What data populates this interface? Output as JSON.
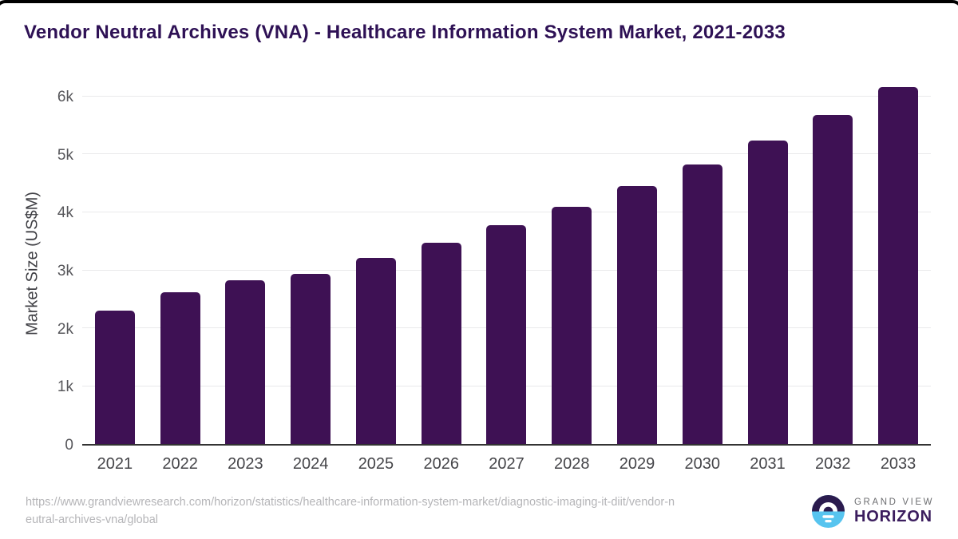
{
  "title": "Vendor Neutral Archives (VNA) - Healthcare Information System Market, 2021-2033",
  "chart_data": {
    "type": "bar",
    "title": "Vendor Neutral Archives (VNA) - Healthcare Information System Market, 2021-2033",
    "categories": [
      "2021",
      "2022",
      "2023",
      "2024",
      "2025",
      "2026",
      "2027",
      "2028",
      "2029",
      "2030",
      "2031",
      "2032",
      "2033"
    ],
    "values": [
      2300,
      2620,
      2820,
      2930,
      3200,
      3470,
      3775,
      4090,
      4445,
      4820,
      5230,
      5670,
      6150
    ],
    "xlabel": "",
    "ylabel": "Market Size (US$M)",
    "ylim": [
      0,
      6000
    ],
    "yticks": [
      {
        "value": 0,
        "label": "0"
      },
      {
        "value": 1000,
        "label": "1k"
      },
      {
        "value": 2000,
        "label": "2k"
      },
      {
        "value": 3000,
        "label": "3k"
      },
      {
        "value": 4000,
        "label": "4k"
      },
      {
        "value": 5000,
        "label": "5k"
      },
      {
        "value": 6000,
        "label": "6k"
      }
    ],
    "grid": true,
    "legend": null,
    "bar_color": "#3e1154"
  },
  "colors": {
    "bar": "#3e1154",
    "title_text": "#2e1155",
    "gridline": "#e9e9eb",
    "axis_line": "#333333",
    "tick_text": "#57575b",
    "url_text": "#b5b5b8",
    "logo_dark": "#2b1b4e",
    "logo_blue": "#57c4ef",
    "logo_horizon_text": "#3b1d5e",
    "logo_grandview_text": "#6d6e71"
  },
  "footer": {
    "source_lines": [
      "https://www.grandviewresearch.com/horizon/statistics/healthcare-information-system-market/diagnostic-imaging-it-diit/vendor-n",
      "eutral-archives-vna/global"
    ],
    "logo": {
      "top_text": "GRAND VIEW",
      "bottom_text": "HORIZON"
    }
  }
}
